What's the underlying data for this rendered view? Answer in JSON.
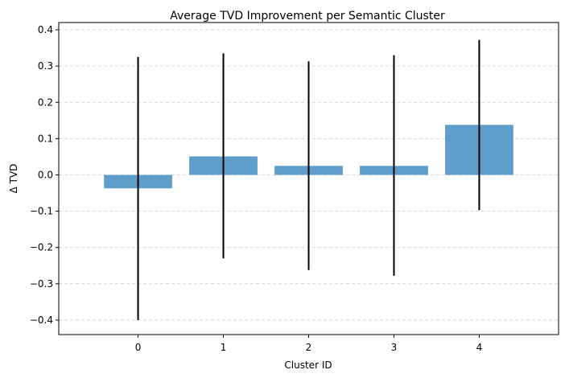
{
  "chart_data": {
    "type": "bar",
    "title": "Average TVD Improvement per Semantic Cluster",
    "xlabel": "Cluster ID",
    "ylabel": "Δ TVD",
    "categories": [
      "0",
      "1",
      "2",
      "3",
      "4"
    ],
    "values": [
      -0.037,
      0.051,
      0.025,
      0.025,
      0.138
    ],
    "error_low": [
      -0.4,
      -0.23,
      -0.262,
      -0.278,
      -0.097
    ],
    "error_high": [
      0.325,
      0.335,
      0.313,
      0.33,
      0.372
    ],
    "ylim": [
      -0.44,
      0.42
    ],
    "yticks": [
      -0.4,
      -0.3,
      -0.2,
      -0.1,
      0.0,
      0.1,
      0.2,
      0.3,
      0.4
    ],
    "ytick_labels": [
      "−0.4",
      "−0.3",
      "−0.2",
      "−0.1",
      "0.0",
      "0.1",
      "0.2",
      "0.3",
      "0.4"
    ],
    "grid": "horizontal dashed",
    "bar_color": "#5f9ecb",
    "error_color": "#000000"
  }
}
